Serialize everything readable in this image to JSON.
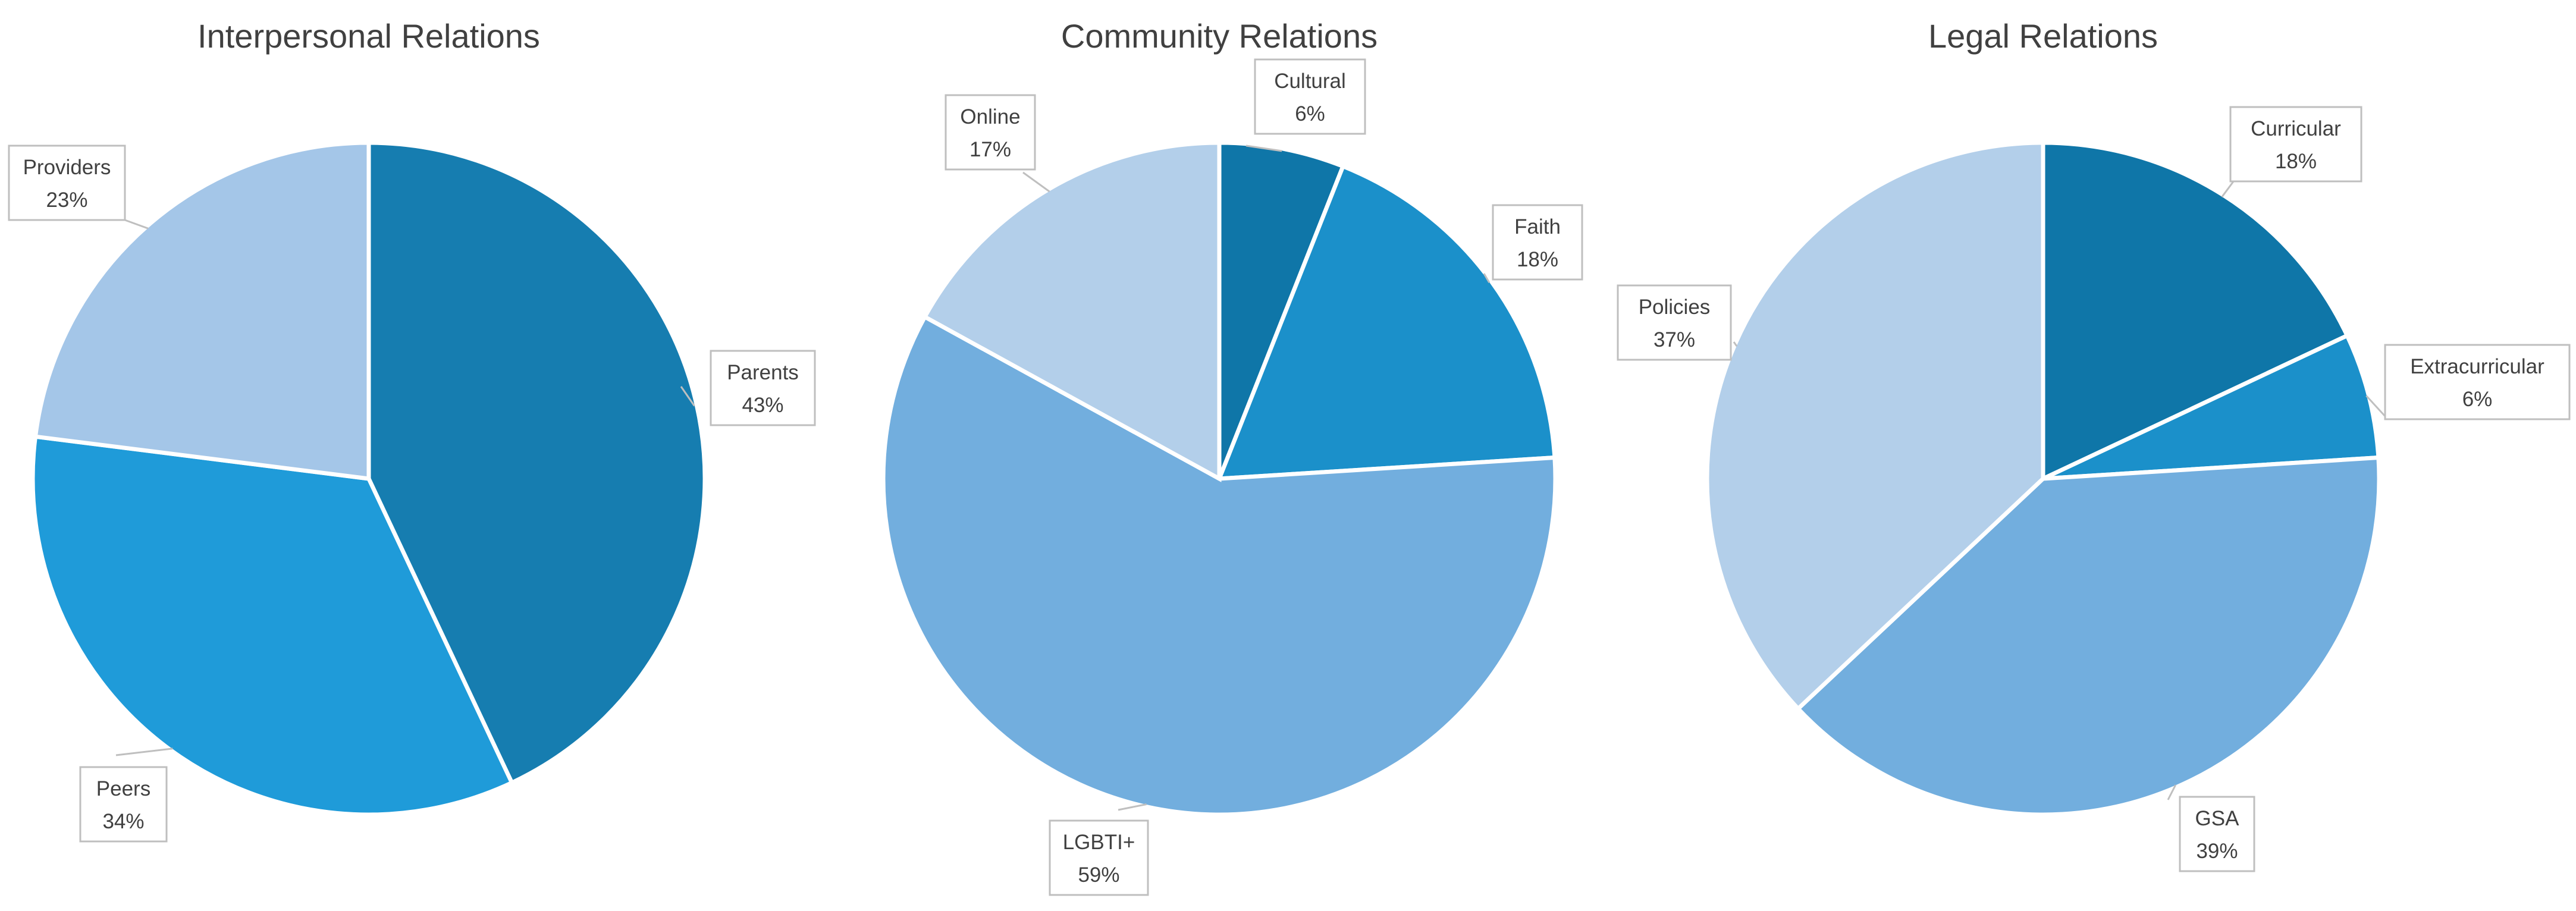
{
  "chart_data": [
    {
      "type": "pie",
      "title": "Interpersonal Relations",
      "slices": [
        {
          "label": "Parents",
          "value": 43,
          "display": "43%",
          "color": "#167db0"
        },
        {
          "label": "Peers",
          "value": 34,
          "display": "34%",
          "color": "#1f9bd9"
        },
        {
          "label": "Providers",
          "value": 23,
          "display": "23%",
          "color": "#a4c6e8"
        }
      ]
    },
    {
      "type": "pie",
      "title": "Community Relations",
      "slices": [
        {
          "label": "Cultural",
          "value": 6,
          "display": "6%",
          "color": "#0f76a8"
        },
        {
          "label": "Faith",
          "value": 18,
          "display": "18%",
          "color": "#1b90ca"
        },
        {
          "label": "LGBTI+",
          "value": 59,
          "display": "59%",
          "color": "#72aede"
        },
        {
          "label": "Online",
          "value": 17,
          "display": "17%",
          "color": "#b3cfea"
        }
      ]
    },
    {
      "type": "pie",
      "title": "Legal Relations",
      "slices": [
        {
          "label": "Curricular",
          "value": 18,
          "display": "18%",
          "color": "#0f76a8"
        },
        {
          "label": "Extracurricular",
          "value": 6,
          "display": "6%",
          "color": "#1b90ca"
        },
        {
          "label": "GSA",
          "value": 39,
          "display": "39%",
          "color": "#72aede"
        },
        {
          "label": "Policies",
          "value": 37,
          "display": "37%",
          "color": "#b3cfea"
        }
      ]
    }
  ]
}
